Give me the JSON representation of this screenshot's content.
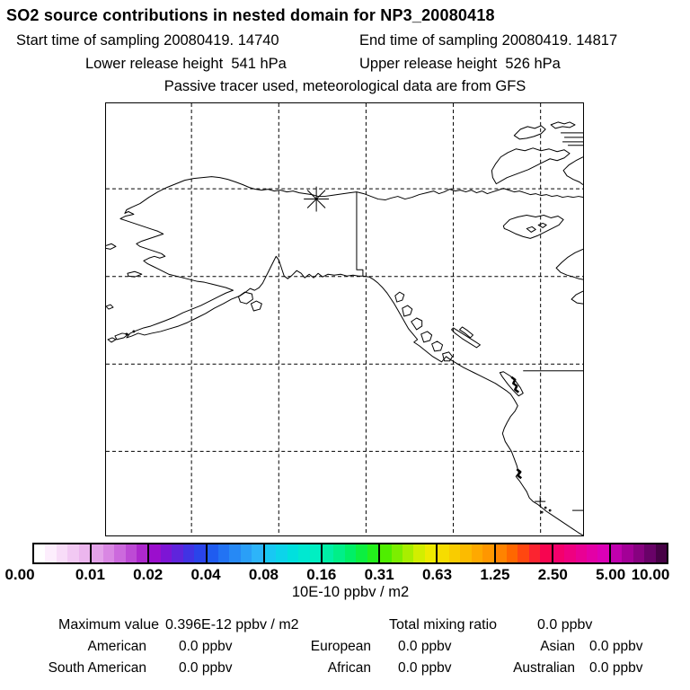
{
  "header": {
    "title": "SO2 source contributions in nested domain for NP3_20080418",
    "start_time": "Start time of sampling 20080419. 14740",
    "end_time": "End time of sampling 20080419. 14817",
    "lower_release": "Lower release height  541 hPa",
    "upper_release": "Upper release height  526 hPa",
    "tracer_note": "Passive tracer used, meteorological data are from GFS"
  },
  "colorbar": {
    "caption": "10E-10 ppbv / m2",
    "ticks": [
      "0.00",
      "0.01",
      "0.02",
      "0.04",
      "0.08",
      "0.16",
      "0.31",
      "0.63",
      "1.25",
      "2.50",
      "5.00",
      "10.00"
    ],
    "segments": [
      {
        "colors": [
          "#ffffff",
          "#fdeefd",
          "#f8dcf8",
          "#f2c9f3",
          "#ecb6ee"
        ]
      },
      {
        "colors": [
          "#e3a2e9",
          "#d987e3",
          "#cc69dd",
          "#bd4ad5",
          "#ad28cd"
        ]
      },
      {
        "colors": [
          "#9b0ecd",
          "#7d15d5",
          "#5f24dc",
          "#4133e4",
          "#2a44ea"
        ]
      },
      {
        "colors": [
          "#1f5cf0",
          "#2273f3",
          "#2689f5",
          "#2a9ff7",
          "#2db4f9"
        ]
      },
      {
        "colors": [
          "#18c8f3",
          "#0cd4ea",
          "#00e0de",
          "#00e8d1",
          "#00efc2"
        ]
      },
      {
        "colors": [
          "#00efa6",
          "#00ef88",
          "#00ef66",
          "#0cef40",
          "#23ef1c"
        ]
      },
      {
        "colors": [
          "#4fee00",
          "#7cee00",
          "#a8ee00",
          "#d2ee00",
          "#eeea00"
        ]
      },
      {
        "colors": [
          "#f6dd00",
          "#f9cc00",
          "#fcbb00",
          "#fea900",
          "#ff9700"
        ]
      },
      {
        "colors": [
          "#ff8300",
          "#ff6700",
          "#ff4710",
          "#fb2430",
          "#f70550"
        ]
      },
      {
        "colors": [
          "#f4006c",
          "#ef0080",
          "#e90094",
          "#e300a6",
          "#dc00b6"
        ]
      },
      {
        "colors": [
          "#c000ae",
          "#a30097",
          "#870280",
          "#690268",
          "#470146"
        ]
      }
    ]
  },
  "stats": {
    "max_label": "Maximum value",
    "max_value": "0.396E-12 ppbv / m2",
    "total_label": "Total mixing ratio",
    "total_value": "0.0 ppbv",
    "rows": [
      {
        "cells": [
          "American",
          "0.0 ppbv",
          "European",
          "0.0 ppbv",
          "Asian",
          "0.0 ppbv"
        ]
      },
      {
        "cells": [
          "South American",
          "0.0 ppbv",
          "African",
          "0.0 ppbv",
          "Australian",
          "0.0 ppbv"
        ]
      }
    ]
  },
  "chart_data": {
    "type": "heatmap",
    "title": "SO2 source contributions in nested domain for NP3_20080418",
    "subtitle": [
      "Start time of sampling 20080419. 14740",
      "End time of sampling 20080419. 14817",
      "Lower release height 541 hPa",
      "Upper release height 526 hPa",
      "Passive tracer used, meteorological data are from GFS"
    ],
    "colorbar_units": "10E-10 ppbv / m2",
    "colorbar_levels": [
      0.0,
      0.01,
      0.02,
      0.04,
      0.08,
      0.16,
      0.31,
      0.63,
      1.25,
      2.5,
      5.0,
      10.0
    ],
    "maximum_value": "0.396E-12 ppbv / m2",
    "total_mixing_ratio_ppbv": 0.0,
    "contributions_ppbv": {
      "American": 0.0,
      "European": 0.0,
      "Asian": 0.0,
      "South American": 0.0,
      "African": 0.0,
      "Australian": 0.0
    },
    "map_region": "Alaska / Yukon / northeast Pacific coast",
    "markers": [
      "asterisk station marker on north Alaska coast",
      "plus marker on California coast"
    ],
    "notes": "No shaded concentration contours visible; field is below lowest color level everywhere"
  }
}
